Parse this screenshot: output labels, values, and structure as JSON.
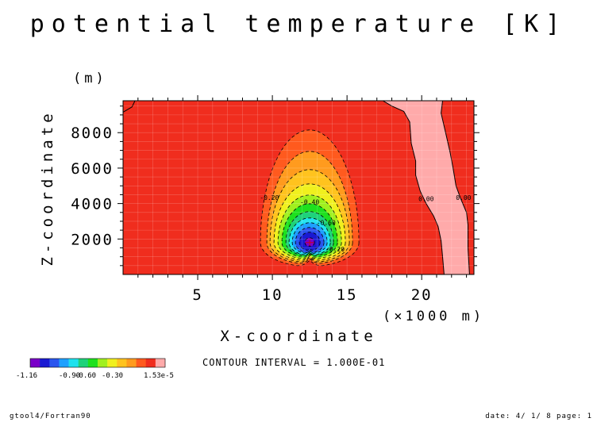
{
  "chart_data": {
    "type": "contour",
    "title": "potential temperature [K]",
    "xlabel": "X-coordinate",
    "x_unit": "(×1000 m)",
    "ylabel": "Z-coordinate",
    "y_unit": "(m)",
    "xlim": [
      0,
      23.5
    ],
    "ylim": [
      0,
      9800
    ],
    "x_ticks": [
      5,
      10,
      15,
      20
    ],
    "y_ticks": [
      2000,
      4000,
      6000,
      8000
    ],
    "x_tick_labels": [
      "5",
      "10",
      "15",
      "20"
    ],
    "y_tick_labels": [
      "2000",
      "4000",
      "6000",
      "8000"
    ],
    "contour_interval": "CONTOUR INTERVAL = 1.000E-01",
    "contour_labels": [
      {
        "text": "-0.20",
        "x": 9.8,
        "z": 4200
      },
      {
        "text": "-0.40",
        "x": 12.5,
        "z": 3950
      },
      {
        "text": "-0.60",
        "x": 13.6,
        "z": 2800
      },
      {
        "text": "-0.20",
        "x": 14.2,
        "z": 1300
      },
      {
        "text": "0.00",
        "x": 20.3,
        "z": 4150
      },
      {
        "text": "0.00",
        "x": 22.8,
        "z": 4200
      }
    ],
    "colorbar": {
      "colors": [
        "#7a00c8",
        "#1a1ad2",
        "#2a55ee",
        "#1ea0ff",
        "#1ee1ee",
        "#1ed27a",
        "#1ee11e",
        "#a0f01e",
        "#f0f01e",
        "#ffc31e",
        "#ff9b1e",
        "#ff5a1e",
        "#f02d1e",
        "#ffaaaa"
      ],
      "tick_labels": [
        "-1.16",
        "-0.90",
        "-0.60",
        "-0.30",
        "1.53e-5"
      ]
    },
    "field": {
      "background_color": "#f02d1e",
      "positive_color": "#ffaaaa",
      "center": {
        "x": 12.5,
        "z": 1800
      },
      "min": -1.16,
      "max": 1.53e-05
    }
  },
  "footer": {
    "left": "gtool4/Fortran90",
    "right": "date: 4/ 1/ 8 page: 1"
  }
}
